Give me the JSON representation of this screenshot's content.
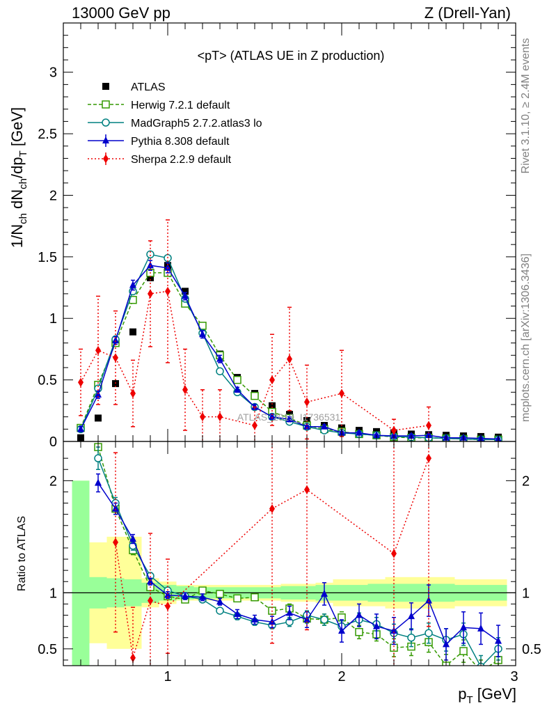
{
  "header": {
    "left": "13000 GeV pp",
    "right": "Z (Drell-Yan)"
  },
  "side": {
    "rivet": "Rivet 3.1.10, ≥ 2.4M events",
    "mcplots": "mcplots.cern.ch [arXiv:1306.3436]"
  },
  "watermark": "ATLAS_2019_I1736531",
  "chart_data": [
    {
      "type": "scatter",
      "title": "<pT> (ATLAS UE in Z production)",
      "xlabel": "p_T [GeV]",
      "ylabel": "1/N_ch dN_ch/dp_T [GeV]",
      "xlim": [
        0.4,
        3.0
      ],
      "ylim": [
        0,
        3.4
      ],
      "yticks": [
        0,
        0.5,
        1,
        1.5,
        2,
        2.5,
        3
      ],
      "legend_position": "top-left",
      "series": [
        {
          "name": "ATLAS",
          "color": "#000000",
          "marker": "filled-square",
          "line": "none",
          "x": [
            0.5,
            0.6,
            0.7,
            0.8,
            0.9,
            1.0,
            1.1,
            1.2,
            1.3,
            1.4,
            1.5,
            1.6,
            1.7,
            1.8,
            1.9,
            2.0,
            2.1,
            2.2,
            2.3,
            2.4,
            2.5,
            2.6,
            2.7,
            2.8,
            2.9
          ],
          "y": [
            0.03,
            0.19,
            0.47,
            0.89,
            1.33,
            1.43,
            1.22,
            0.94,
            0.71,
            0.52,
            0.39,
            0.29,
            0.22,
            0.17,
            0.13,
            0.11,
            0.09,
            0.08,
            0.07,
            0.06,
            0.055,
            0.05,
            0.045,
            0.04,
            0.035
          ]
        },
        {
          "name": "Herwig 7.2.1 default",
          "color": "#339900",
          "marker": "open-square",
          "line": "dashed",
          "x": [
            0.5,
            0.6,
            0.7,
            0.8,
            0.9,
            1.0,
            1.1,
            1.2,
            1.3,
            1.4,
            1.5,
            1.6,
            1.7,
            1.8,
            1.9,
            2.0,
            2.1,
            2.2,
            2.3,
            2.4,
            2.5,
            2.6,
            2.7,
            2.8,
            2.9
          ],
          "y": [
            0.11,
            0.46,
            0.8,
            1.15,
            1.37,
            1.37,
            1.12,
            0.94,
            0.7,
            0.5,
            0.37,
            0.24,
            0.19,
            0.13,
            0.1,
            0.08,
            0.06,
            0.05,
            0.035,
            0.03,
            0.03,
            0.025,
            0.02,
            0.015,
            0.015
          ]
        },
        {
          "name": "MadGraph5 2.7.2.atlas3 lo",
          "color": "#008080",
          "marker": "open-circle",
          "line": "solid",
          "x": [
            0.5,
            0.6,
            0.7,
            0.8,
            0.9,
            1.0,
            1.1,
            1.2,
            1.3,
            1.4,
            1.5,
            1.6,
            1.7,
            1.8,
            1.9,
            2.0,
            2.1,
            2.2,
            2.3,
            2.4,
            2.5,
            2.6,
            2.7,
            2.8,
            2.9
          ],
          "y": [
            0.1,
            0.43,
            0.83,
            1.22,
            1.52,
            1.49,
            1.16,
            0.88,
            0.57,
            0.4,
            0.28,
            0.2,
            0.16,
            0.12,
            0.09,
            0.07,
            0.06,
            0.05,
            0.04,
            0.035,
            0.03,
            0.025,
            0.02,
            0.015,
            0.015
          ]
        },
        {
          "name": "Pythia 8.308 default",
          "color": "#0000cc",
          "marker": "filled-triangle",
          "line": "solid",
          "x": [
            0.5,
            0.6,
            0.7,
            0.8,
            0.9,
            1.0,
            1.1,
            1.2,
            1.3,
            1.4,
            1.5,
            1.6,
            1.7,
            1.8,
            1.9,
            2.0,
            2.1,
            2.2,
            2.3,
            2.4,
            2.5,
            2.6,
            2.7,
            2.8,
            2.9
          ],
          "y": [
            0.1,
            0.38,
            0.82,
            1.27,
            1.43,
            1.41,
            1.18,
            0.87,
            0.67,
            0.42,
            0.28,
            0.2,
            0.18,
            0.12,
            0.12,
            0.07,
            0.07,
            0.05,
            0.045,
            0.045,
            0.05,
            0.03,
            0.03,
            0.025,
            0.02
          ],
          "yerr": [
            0.02,
            0.03,
            0.03,
            0.04,
            0.04,
            0.04,
            0.03,
            0.03,
            0.03,
            0.02,
            0.02,
            0.02,
            0.02,
            0.01,
            0.015,
            0.01,
            0.01,
            0.01,
            0.01,
            0.01,
            0.01,
            0.01,
            0.01,
            0.005,
            0.005
          ]
        },
        {
          "name": "Sherpa 2.2.9 default",
          "color": "#ee0000",
          "marker": "filled-diamond",
          "line": "dotted",
          "x": [
            0.5,
            0.6,
            0.7,
            0.8,
            0.9,
            1.0,
            1.1,
            1.2,
            1.3,
            1.5,
            1.6,
            1.7,
            1.8,
            2.0,
            2.3,
            2.5
          ],
          "y": [
            0.48,
            0.74,
            0.68,
            0.39,
            1.2,
            1.22,
            0.42,
            0.2,
            0.2,
            0.13,
            0.5,
            0.67,
            0.32,
            0.39,
            0.09,
            0.13
          ],
          "yerr": [
            0.27,
            0.44,
            0.38,
            0.27,
            0.43,
            0.58,
            0.33,
            0.22,
            0.22,
            0.15,
            0.37,
            0.42,
            0.3,
            0.35,
            0.09,
            0.15
          ]
        }
      ]
    },
    {
      "type": "scatter",
      "title": "",
      "xlabel": "p_T [GeV]",
      "ylabel": "Ratio to ATLAS",
      "xlim": [
        0.4,
        3.0
      ],
      "xticks": [
        1,
        2,
        3
      ],
      "ylim": [
        0.35,
        2.35
      ],
      "yticks": [
        0.5,
        1,
        2
      ],
      "reference_line": 1,
      "bands": {
        "x": [
          0.5,
          0.6,
          0.7,
          0.8,
          0.9,
          1.0,
          1.1,
          1.2,
          1.3,
          1.4,
          1.5,
          1.6,
          1.7,
          1.8,
          1.9,
          2.0,
          2.1,
          2.2,
          2.3,
          2.4,
          2.5,
          2.6,
          2.7,
          2.8,
          2.9
        ],
        "inner_color": "#99ff99",
        "inner_half_width": [
          1.0,
          0.14,
          0.13,
          0.12,
          0.09,
          0.07,
          0.06,
          0.05,
          0.05,
          0.05,
          0.05,
          0.05,
          0.06,
          0.06,
          0.07,
          0.07,
          0.07,
          0.08,
          0.08,
          0.08,
          0.08,
          0.08,
          0.07,
          0.07,
          0.07
        ],
        "outer_color": "#ffff99",
        "outer_half_width": [
          1.0,
          0.45,
          0.5,
          0.5,
          0.13,
          0.1,
          0.07,
          0.07,
          0.07,
          0.07,
          0.07,
          0.07,
          0.08,
          0.08,
          0.09,
          0.12,
          0.12,
          0.12,
          0.14,
          0.14,
          0.14,
          0.14,
          0.12,
          0.12,
          0.12
        ]
      },
      "series": [
        {
          "name": "Herwig 7.2.1 default",
          "color": "#339900",
          "marker": "open-square",
          "line": "dashed",
          "x": [
            0.6,
            0.7,
            0.8,
            0.9,
            1.0,
            1.1,
            1.2,
            1.3,
            1.4,
            1.5,
            1.6,
            1.7,
            1.8,
            1.9,
            2.0,
            2.1,
            2.2,
            2.3,
            2.4,
            2.5,
            2.6,
            2.7,
            2.8,
            2.9
          ],
          "y": [
            2.3,
            1.75,
            1.38,
            1.05,
            0.97,
            0.94,
            1.02,
            0.99,
            0.95,
            0.96,
            0.84,
            0.86,
            0.77,
            0.76,
            0.78,
            0.65,
            0.63,
            0.51,
            0.52,
            0.56,
            0.35,
            0.48,
            0.3,
            0.4
          ],
          "yerr": [
            0.1,
            0.05,
            0.04,
            0.03,
            0.03,
            0.02,
            0.02,
            0.02,
            0.03,
            0.03,
            0.03,
            0.04,
            0.04,
            0.05,
            0.05,
            0.06,
            0.06,
            0.08,
            0.08,
            0.09,
            0.1,
            0.1,
            0.1,
            0.1
          ]
        },
        {
          "name": "MadGraph5 2.7.2.atlas3 lo",
          "color": "#008080",
          "marker": "open-circle",
          "line": "solid",
          "x": [
            0.6,
            0.7,
            0.8,
            0.9,
            1.0,
            1.1,
            1.2,
            1.3,
            1.4,
            1.5,
            1.6,
            1.7,
            1.8,
            1.9,
            2.0,
            2.1,
            2.2,
            2.3,
            2.4,
            2.5,
            2.6,
            2.7,
            2.8,
            2.9
          ],
          "y": [
            2.2,
            1.8,
            1.42,
            1.15,
            1.02,
            0.97,
            0.94,
            0.84,
            0.79,
            0.74,
            0.71,
            0.74,
            0.8,
            0.76,
            0.7,
            0.76,
            0.72,
            0.64,
            0.6,
            0.64,
            0.58,
            0.63,
            0.34,
            0.5
          ],
          "yerr": [
            0.1,
            0.05,
            0.04,
            0.03,
            0.03,
            0.02,
            0.02,
            0.02,
            0.03,
            0.03,
            0.03,
            0.04,
            0.04,
            0.05,
            0.05,
            0.06,
            0.06,
            0.08,
            0.08,
            0.09,
            0.1,
            0.1,
            0.1,
            0.1
          ]
        },
        {
          "name": "Pythia 8.308 default",
          "color": "#0000cc",
          "marker": "filled-triangle",
          "line": "solid",
          "x": [
            0.6,
            0.7,
            0.8,
            0.9,
            1.0,
            1.1,
            1.2,
            1.3,
            1.4,
            1.5,
            1.6,
            1.7,
            1.8,
            1.9,
            2.0,
            2.1,
            2.2,
            2.3,
            2.4,
            2.5,
            2.6,
            2.7,
            2.8,
            2.9
          ],
          "y": [
            1.98,
            1.75,
            1.48,
            1.1,
            0.98,
            0.97,
            0.96,
            0.92,
            0.81,
            0.76,
            0.74,
            0.82,
            0.76,
            0.99,
            0.66,
            0.8,
            0.7,
            0.66,
            0.79,
            0.93,
            0.54,
            0.69,
            0.68,
            0.57
          ],
          "yerr": [
            0.08,
            0.05,
            0.04,
            0.03,
            0.03,
            0.03,
            0.03,
            0.03,
            0.04,
            0.04,
            0.05,
            0.06,
            0.07,
            0.1,
            0.1,
            0.1,
            0.11,
            0.12,
            0.12,
            0.14,
            0.14,
            0.14,
            0.14,
            0.14
          ]
        },
        {
          "name": "Sherpa 2.2.9 default",
          "color": "#ee0000",
          "marker": "filled-diamond",
          "line": "dotted",
          "x": [
            0.7,
            0.8,
            0.9,
            1.0,
            1.6,
            1.8,
            2.3,
            2.5
          ],
          "y": [
            1.45,
            0.42,
            0.93,
            0.88,
            1.75,
            1.92,
            1.35,
            2.2
          ],
          "yerr": [
            0.8,
            0.45,
            0.6,
            0.42,
            1.2,
            1.25,
            1.3,
            1.5
          ]
        }
      ]
    }
  ]
}
